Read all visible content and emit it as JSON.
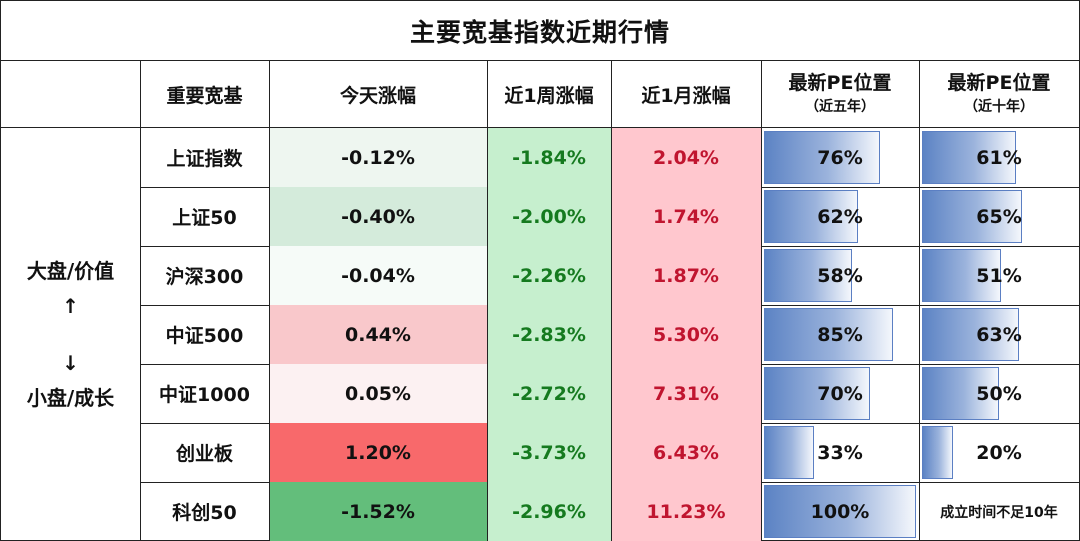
{
  "title": "主要宽基指数近期行情",
  "headers": {
    "index": "重要宽基",
    "today": "今天涨幅",
    "week": "近1周涨幅",
    "month": "近1月涨幅",
    "pe5_line1": "最新PE位置",
    "pe5_line2": "（近五年）",
    "pe10_line1": "最新PE位置",
    "pe10_line2": "（近十年）"
  },
  "side_label": {
    "top": "大盘/价值",
    "up_arrow": "↑",
    "down_arrow": "↓",
    "bottom": "小盘/成长"
  },
  "colors": {
    "green_text": "#157a1f",
    "red_text": "#c0152f",
    "pe_bar": "#5c83c4",
    "week_bg": "#c6efce",
    "month_bg": "#ffc7ce"
  },
  "rows": [
    {
      "name": "上证指数",
      "today": "-0.12%",
      "week": "-1.84%",
      "month": "2.04%",
      "pe5": "76%",
      "pe5_level": 0.76,
      "pe10": "61%",
      "pe10_level": 0.61,
      "today_bg": "#eef6f0",
      "today_color": "#111111",
      "pe10_note": ""
    },
    {
      "name": "上证50",
      "today": "-0.40%",
      "week": "-2.00%",
      "month": "1.74%",
      "pe5": "62%",
      "pe5_level": 0.62,
      "pe10": "65%",
      "pe10_level": 0.65,
      "today_bg": "#d4ebdb",
      "today_color": "#111111",
      "pe10_note": ""
    },
    {
      "name": "沪深300",
      "today": "-0.04%",
      "week": "-2.26%",
      "month": "1.87%",
      "pe5": "58%",
      "pe5_level": 0.58,
      "pe10": "51%",
      "pe10_level": 0.51,
      "today_bg": "#f6fbf8",
      "today_color": "#111111",
      "pe10_note": ""
    },
    {
      "name": "中证500",
      "today": "0.44%",
      "week": "-2.83%",
      "month": "5.30%",
      "pe5": "85%",
      "pe5_level": 0.85,
      "pe10": "63%",
      "pe10_level": 0.63,
      "today_bg": "#f9c8cb",
      "today_color": "#111111",
      "pe10_note": ""
    },
    {
      "name": "中证1000",
      "today": "0.05%",
      "week": "-2.72%",
      "month": "7.31%",
      "pe5": "70%",
      "pe5_level": 0.7,
      "pe10": "50%",
      "pe10_level": 0.5,
      "today_bg": "#fcf1f2",
      "today_color": "#111111",
      "pe10_note": ""
    },
    {
      "name": "创业板",
      "today": "1.20%",
      "week": "-3.73%",
      "month": "6.43%",
      "pe5": "33%",
      "pe5_level": 0.33,
      "pe10": "20%",
      "pe10_level": 0.2,
      "today_bg": "#f8696b",
      "today_color": "#111111",
      "pe10_note": ""
    },
    {
      "name": "科创50",
      "today": "-1.52%",
      "week": "-2.96%",
      "month": "11.23%",
      "pe5": "100%",
      "pe5_level": 1.0,
      "pe10": "",
      "pe10_level": 0,
      "today_bg": "#63be7b",
      "today_color": "#111111",
      "pe10_note": "成立时间不足10年"
    }
  ]
}
